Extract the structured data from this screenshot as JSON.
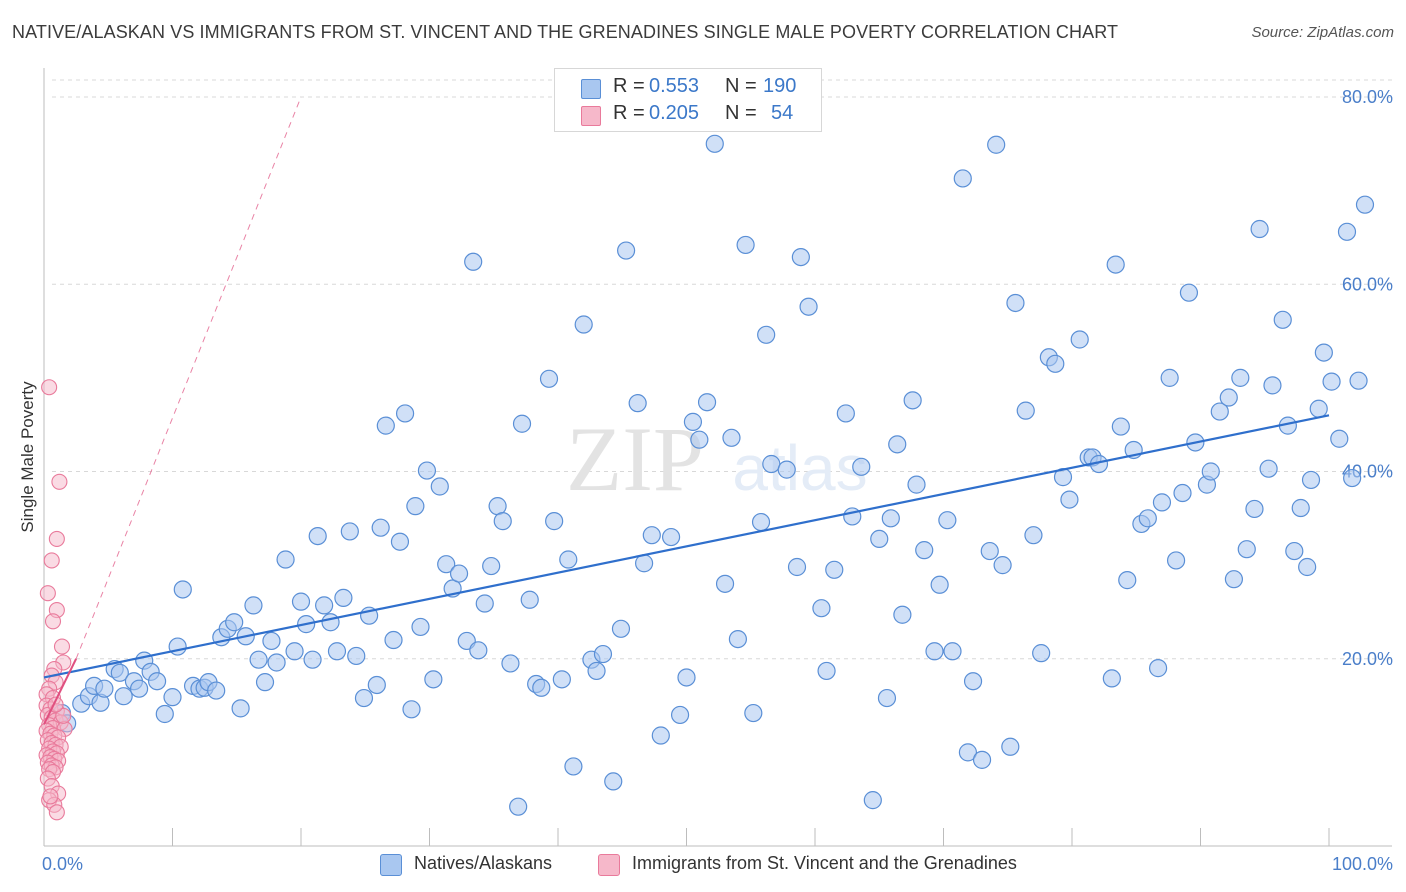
{
  "header": {
    "title": "NATIVE/ALASKAN VS IMMIGRANTS FROM ST. VINCENT AND THE GRENADINES SINGLE MALE POVERTY CORRELATION CHART",
    "source": "Source: ZipAtlas.com"
  },
  "watermark": {
    "zip": "ZIP",
    "atlas": "atlas"
  },
  "stats_box": {
    "rows": [
      {
        "r_label": "R =",
        "r_value": "0.553",
        "n_label": "N =",
        "n_value": "190",
        "color": "#a9c7f0"
      },
      {
        "r_label": "R =",
        "r_value": "0.205",
        "n_label": "N =",
        "n_value": "54",
        "color": "#f6b8ca"
      }
    ]
  },
  "legend": {
    "items": [
      {
        "label": "Natives/Alaskans",
        "color": "#a9c7f0"
      },
      {
        "label": "Immigrants from St. Vincent and the Grenadines",
        "color": "#f6b8ca"
      }
    ]
  },
  "chart_data": {
    "type": "scatter",
    "title": "NATIVE/ALASKAN VS IMMIGRANTS FROM ST. VINCENT AND THE GRENADINES SINGLE MALE POVERTY CORRELATION CHART",
    "xlabel": "",
    "ylabel": "Single Male Poverty",
    "xlim": [
      0,
      100
    ],
    "ylim": [
      0,
      80
    ],
    "x_tick_labels": [
      "0.0%",
      "100.0%"
    ],
    "y_ticks": [
      20,
      40,
      60,
      80
    ],
    "y_tick_labels": [
      "20.0%",
      "40.0%",
      "60.0%",
      "80.0%"
    ],
    "grid": "horizontal dashed",
    "legend_position": "bottom",
    "colors": {
      "series1_fill": "#a9c7f0",
      "series1_stroke": "#5a8fd6",
      "series1_line": "#2f6fcc",
      "series2_fill": "#f6b8ca",
      "series2_stroke": "#e97a9b",
      "series2_line": "#e05080"
    },
    "series": [
      {
        "name": "Natives/Alaskans",
        "trend": {
          "x": [
            0,
            100
          ],
          "y": [
            18,
            46
          ]
        },
        "points": [
          [
            1.4,
            14.2
          ],
          [
            1.8,
            13.1
          ],
          [
            2.9,
            15.2
          ],
          [
            3.5,
            16.0
          ],
          [
            3.9,
            17.1
          ],
          [
            4.4,
            15.3
          ],
          [
            4.7,
            16.8
          ],
          [
            5.5,
            18.9
          ],
          [
            5.9,
            18.5
          ],
          [
            6.2,
            16.0
          ],
          [
            7.0,
            17.6
          ],
          [
            7.4,
            16.8
          ],
          [
            7.8,
            19.8
          ],
          [
            8.3,
            18.6
          ],
          [
            8.8,
            17.6
          ],
          [
            9.4,
            14.1
          ],
          [
            10.0,
            15.9
          ],
          [
            10.4,
            21.3
          ],
          [
            10.8,
            27.4
          ],
          [
            11.6,
            17.1
          ],
          [
            12.1,
            16.8
          ],
          [
            12.5,
            16.9
          ],
          [
            12.8,
            17.5
          ],
          [
            13.4,
            16.6
          ],
          [
            13.8,
            22.3
          ],
          [
            14.3,
            23.2
          ],
          [
            14.8,
            23.9
          ],
          [
            15.3,
            14.7
          ],
          [
            15.7,
            22.4
          ],
          [
            16.3,
            25.7
          ],
          [
            16.7,
            19.9
          ],
          [
            17.2,
            17.5
          ],
          [
            17.7,
            21.9
          ],
          [
            18.1,
            19.6
          ],
          [
            18.8,
            30.6
          ],
          [
            19.5,
            20.8
          ],
          [
            20.0,
            26.1
          ],
          [
            20.4,
            23.7
          ],
          [
            20.9,
            19.9
          ],
          [
            21.3,
            33.1
          ],
          [
            21.8,
            25.7
          ],
          [
            22.3,
            23.9
          ],
          [
            22.8,
            20.8
          ],
          [
            23.3,
            26.5
          ],
          [
            23.8,
            33.6
          ],
          [
            24.3,
            20.3
          ],
          [
            24.9,
            15.8
          ],
          [
            25.3,
            24.6
          ],
          [
            25.9,
            17.2
          ],
          [
            26.2,
            34.0
          ],
          [
            26.6,
            44.9
          ],
          [
            27.2,
            22.0
          ],
          [
            27.7,
            32.5
          ],
          [
            28.1,
            46.2
          ],
          [
            28.6,
            14.6
          ],
          [
            28.9,
            36.3
          ],
          [
            29.3,
            23.4
          ],
          [
            29.8,
            40.1
          ],
          [
            30.3,
            17.8
          ],
          [
            30.8,
            38.4
          ],
          [
            31.3,
            30.1
          ],
          [
            31.8,
            27.5
          ],
          [
            32.3,
            29.1
          ],
          [
            32.9,
            21.9
          ],
          [
            33.4,
            62.4
          ],
          [
            33.8,
            20.9
          ],
          [
            34.3,
            25.9
          ],
          [
            34.8,
            29.9
          ],
          [
            35.3,
            36.3
          ],
          [
            35.7,
            34.7
          ],
          [
            36.3,
            19.5
          ],
          [
            36.9,
            4.2
          ],
          [
            37.2,
            45.1
          ],
          [
            37.8,
            26.3
          ],
          [
            38.3,
            17.3
          ],
          [
            38.7,
            16.9
          ],
          [
            39.3,
            49.9
          ],
          [
            39.7,
            34.7
          ],
          [
            40.3,
            17.8
          ],
          [
            40.8,
            30.6
          ],
          [
            41.2,
            8.5
          ],
          [
            42.0,
            55.7
          ],
          [
            42.6,
            19.9
          ],
          [
            43.0,
            18.7
          ],
          [
            43.5,
            20.5
          ],
          [
            44.3,
            6.9
          ],
          [
            44.9,
            23.2
          ],
          [
            45.3,
            63.6
          ],
          [
            46.2,
            47.3
          ],
          [
            46.7,
            30.2
          ],
          [
            47.3,
            33.2
          ],
          [
            48.0,
            11.8
          ],
          [
            48.8,
            33.0
          ],
          [
            49.5,
            14.0
          ],
          [
            50.0,
            18.0
          ],
          [
            50.5,
            45.3
          ],
          [
            51.0,
            43.4
          ],
          [
            51.6,
            47.4
          ],
          [
            52.2,
            75.0
          ],
          [
            53.0,
            28.0
          ],
          [
            53.5,
            43.6
          ],
          [
            54.0,
            22.1
          ],
          [
            54.6,
            64.2
          ],
          [
            55.2,
            14.2
          ],
          [
            55.8,
            34.6
          ],
          [
            56.2,
            54.6
          ],
          [
            56.6,
            40.8
          ],
          [
            57.8,
            40.2
          ],
          [
            58.6,
            29.8
          ],
          [
            58.9,
            62.9
          ],
          [
            59.5,
            57.6
          ],
          [
            60.5,
            25.4
          ],
          [
            60.9,
            18.7
          ],
          [
            61.5,
            29.5
          ],
          [
            62.4,
            46.2
          ],
          [
            62.9,
            35.2
          ],
          [
            63.6,
            40.5
          ],
          [
            64.5,
            4.9
          ],
          [
            65.0,
            32.8
          ],
          [
            65.6,
            15.8
          ],
          [
            65.9,
            35.0
          ],
          [
            66.4,
            42.9
          ],
          [
            66.8,
            24.7
          ],
          [
            67.6,
            47.6
          ],
          [
            67.9,
            38.6
          ],
          [
            68.5,
            31.6
          ],
          [
            69.3,
            20.8
          ],
          [
            69.7,
            27.9
          ],
          [
            70.3,
            34.8
          ],
          [
            70.7,
            20.8
          ],
          [
            71.5,
            71.3
          ],
          [
            71.9,
            10.0
          ],
          [
            72.3,
            17.6
          ],
          [
            73.0,
            9.2
          ],
          [
            73.6,
            31.5
          ],
          [
            74.1,
            74.9
          ],
          [
            74.6,
            30.0
          ],
          [
            75.2,
            10.6
          ],
          [
            75.6,
            58.0
          ],
          [
            76.4,
            46.5
          ],
          [
            77.0,
            33.2
          ],
          [
            77.6,
            20.6
          ],
          [
            78.2,
            52.2
          ],
          [
            78.7,
            51.5
          ],
          [
            79.3,
            39.4
          ],
          [
            79.8,
            37.0
          ],
          [
            80.6,
            54.1
          ],
          [
            81.3,
            41.5
          ],
          [
            81.6,
            41.5
          ],
          [
            82.1,
            40.8
          ],
          [
            83.1,
            17.9
          ],
          [
            83.4,
            62.1
          ],
          [
            83.8,
            44.8
          ],
          [
            84.3,
            28.4
          ],
          [
            84.8,
            42.3
          ],
          [
            85.4,
            34.4
          ],
          [
            85.9,
            35.0
          ],
          [
            86.7,
            19.0
          ],
          [
            87.0,
            36.7
          ],
          [
            87.6,
            50.0
          ],
          [
            88.1,
            30.5
          ],
          [
            88.6,
            37.7
          ],
          [
            89.1,
            59.1
          ],
          [
            89.6,
            43.1
          ],
          [
            90.5,
            38.6
          ],
          [
            90.8,
            40.0
          ],
          [
            91.5,
            46.4
          ],
          [
            92.2,
            47.9
          ],
          [
            92.6,
            28.5
          ],
          [
            93.1,
            50.0
          ],
          [
            93.6,
            31.7
          ],
          [
            94.2,
            36.0
          ],
          [
            94.6,
            65.9
          ],
          [
            95.3,
            40.3
          ],
          [
            95.6,
            49.2
          ],
          [
            96.4,
            56.2
          ],
          [
            96.8,
            44.9
          ],
          [
            97.3,
            31.5
          ],
          [
            97.8,
            36.1
          ],
          [
            98.3,
            29.8
          ],
          [
            98.6,
            39.1
          ],
          [
            99.2,
            46.7
          ],
          [
            99.6,
            52.7
          ],
          [
            100.2,
            49.6
          ],
          [
            100.8,
            43.5
          ],
          [
            101.4,
            65.6
          ],
          [
            101.8,
            39.3
          ],
          [
            102.3,
            49.7
          ],
          [
            102.8,
            68.5
          ]
        ]
      },
      {
        "name": "Immigrants from St. Vincent and the Grenadines",
        "trend": {
          "x": [
            0,
            2.5
          ],
          "y": [
            13,
            20
          ]
        },
        "trend_extended": {
          "x": [
            2.5,
            20
          ],
          "y": [
            20,
            80
          ]
        },
        "points": [
          [
            0.4,
            49.0
          ],
          [
            1.2,
            38.9
          ],
          [
            1.0,
            32.8
          ],
          [
            0.6,
            30.5
          ],
          [
            0.3,
            27.0
          ],
          [
            1.0,
            25.2
          ],
          [
            0.7,
            24.0
          ],
          [
            1.4,
            21.3
          ],
          [
            1.5,
            19.6
          ],
          [
            0.8,
            18.9
          ],
          [
            0.6,
            18.2
          ],
          [
            0.9,
            17.5
          ],
          [
            0.4,
            16.8
          ],
          [
            0.2,
            16.2
          ],
          [
            0.7,
            15.8
          ],
          [
            0.2,
            15.0
          ],
          [
            0.5,
            14.6
          ],
          [
            1.0,
            14.4
          ],
          [
            0.3,
            14.0
          ],
          [
            0.6,
            13.7
          ],
          [
            0.9,
            13.4
          ],
          [
            1.3,
            13.2
          ],
          [
            0.4,
            12.9
          ],
          [
            0.7,
            12.6
          ],
          [
            1.6,
            12.5
          ],
          [
            0.2,
            12.3
          ],
          [
            0.5,
            12.0
          ],
          [
            0.8,
            11.8
          ],
          [
            1.1,
            11.6
          ],
          [
            0.3,
            11.3
          ],
          [
            0.6,
            11.0
          ],
          [
            0.9,
            10.8
          ],
          [
            1.3,
            10.6
          ],
          [
            0.4,
            10.4
          ],
          [
            0.7,
            10.1
          ],
          [
            1.0,
            9.9
          ],
          [
            0.2,
            9.7
          ],
          [
            0.5,
            9.5
          ],
          [
            0.8,
            9.3
          ],
          [
            1.1,
            9.1
          ],
          [
            0.3,
            8.9
          ],
          [
            0.6,
            8.6
          ],
          [
            0.9,
            8.4
          ],
          [
            0.4,
            8.2
          ],
          [
            0.7,
            7.9
          ],
          [
            0.3,
            7.2
          ],
          [
            0.6,
            6.4
          ],
          [
            1.1,
            5.6
          ],
          [
            0.4,
            4.9
          ],
          [
            0.8,
            4.4
          ],
          [
            1.0,
            3.6
          ],
          [
            0.5,
            5.3
          ],
          [
            1.5,
            13.9
          ],
          [
            0.9,
            15.1
          ]
        ]
      }
    ]
  }
}
